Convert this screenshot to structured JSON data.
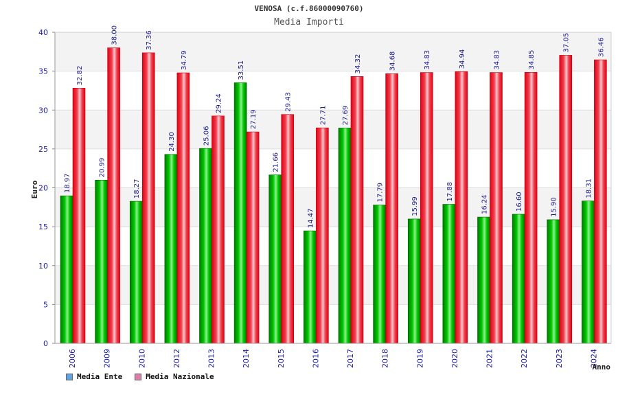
{
  "title": "VENOSA (c.f.86000090760)",
  "subtitle": "Media Importi",
  "chart_data": {
    "type": "bar",
    "title": "VENOSA (c.f.86000090760)",
    "subtitle": "Media Importi",
    "xlabel": "Anno",
    "ylabel": "Euro",
    "ylim": [
      0,
      40
    ],
    "yticks": [
      0,
      5,
      10,
      15,
      20,
      25,
      30,
      35,
      40
    ],
    "grid": true,
    "legend_position": "bottom-left",
    "categories": [
      "2006",
      "2009",
      "2010",
      "2012",
      "2013",
      "2014",
      "2015",
      "2016",
      "2017",
      "2018",
      "2019",
      "2020",
      "2021",
      "2022",
      "2023",
      "2024"
    ],
    "series": [
      {
        "name": "Media Ente",
        "color": "#00aa00",
        "legend_color": "#5fa2e8",
        "values": [
          18.97,
          20.99,
          18.27,
          24.3,
          25.06,
          33.51,
          21.66,
          14.47,
          27.69,
          17.79,
          15.99,
          17.88,
          16.24,
          16.6,
          15.9,
          18.31
        ],
        "labels": [
          "18.97",
          "20.99",
          "18.27",
          "24.30",
          "25.06",
          "33.51",
          "21.66",
          "14.47",
          "27.69",
          "17.79",
          "15.99",
          "17.88",
          "16.24",
          "16.60",
          "15.90",
          "18.31"
        ]
      },
      {
        "name": "Media Nazionale",
        "color": "#ee1111",
        "legend_color": "#e07aa8",
        "values": [
          32.82,
          38.0,
          37.36,
          34.79,
          29.24,
          27.19,
          29.43,
          27.71,
          34.32,
          34.68,
          34.83,
          34.94,
          34.83,
          34.85,
          37.05,
          36.46
        ],
        "labels": [
          "32.82",
          "38.00",
          "37.36",
          "34.79",
          "29.24",
          "27.19",
          "29.43",
          "27.71",
          "34.32",
          "34.68",
          "34.83",
          "34.94",
          "34.83",
          "34.85",
          "37.05",
          "36.46"
        ]
      }
    ]
  }
}
